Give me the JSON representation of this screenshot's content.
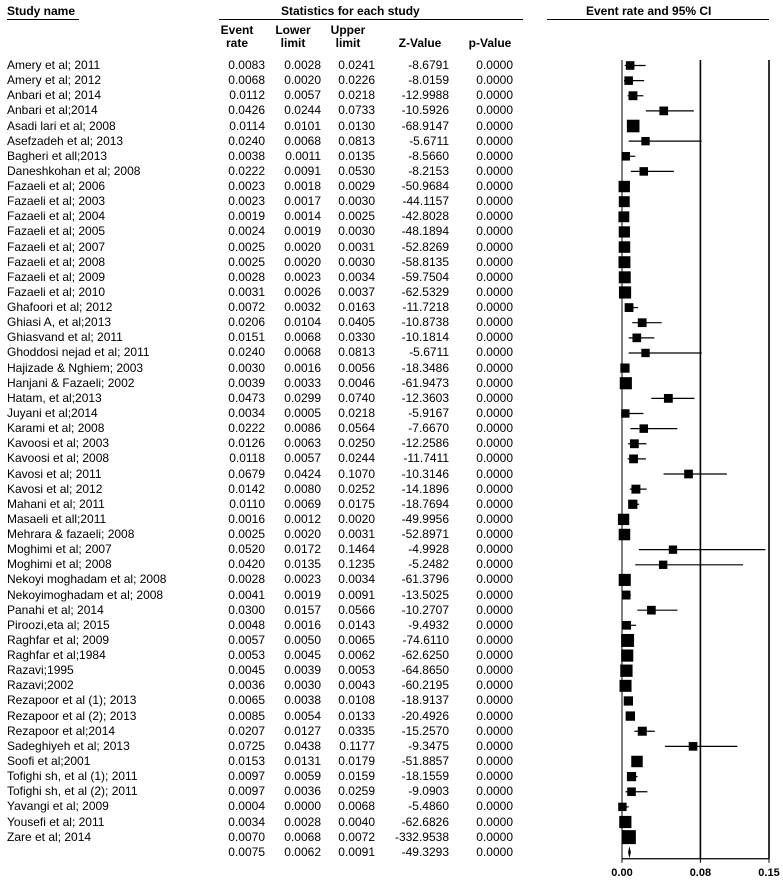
{
  "headers": {
    "study_name": "Study name",
    "statistics": "Statistics for each study",
    "event_rate_ci": "Event rate and 95% CI",
    "col_event_rate": [
      "Event",
      "rate"
    ],
    "col_lower": [
      "Lower",
      "limit"
    ],
    "col_upper": [
      "Upper",
      "limit"
    ],
    "col_z": "Z-Value",
    "col_p": "p-Value"
  },
  "chart_data": {
    "type": "forest",
    "x_ticks": [
      "0.00",
      "0.08",
      "0.15"
    ],
    "xlim": [
      0,
      0.15
    ],
    "studies": [
      {
        "name": "Amery  et al; 2011",
        "rate": "0.0083",
        "lower": "0.0028",
        "upper": "0.0241",
        "z": "-8.6791",
        "p": "0.0000"
      },
      {
        "name": "Amery  et al; 2012",
        "rate": "0.0068",
        "lower": "0.0020",
        "upper": "0.0226",
        "z": "-8.0159",
        "p": "0.0000"
      },
      {
        "name": "Anbari et al; 2014",
        "rate": "0.0112",
        "lower": "0.0057",
        "upper": "0.0218",
        "z": "-12.9988",
        "p": "0.0000"
      },
      {
        "name": "Anbari et al;2014",
        "rate": "0.0426",
        "lower": "0.0244",
        "upper": "0.0733",
        "z": "-10.5926",
        "p": "0.0000"
      },
      {
        "name": "Asadi lari et al; 2008",
        "rate": "0.0114",
        "lower": "0.0101",
        "upper": "0.0130",
        "z": "-68.9147",
        "p": "0.0000"
      },
      {
        "name": "Asefzadeh  et al; 2013",
        "rate": "0.0240",
        "lower": "0.0068",
        "upper": "0.0813",
        "z": "-5.6711",
        "p": "0.0000"
      },
      {
        "name": "Bagheri et all;2013",
        "rate": "0.0038",
        "lower": "0.0011",
        "upper": "0.0135",
        "z": "-8.5660",
        "p": "0.0000"
      },
      {
        "name": "Daneshkohan  et al; 2008",
        "rate": "0.0222",
        "lower": "0.0091",
        "upper": "0.0530",
        "z": "-8.2153",
        "p": "0.0000"
      },
      {
        "name": "Fazaeli et al;  2006",
        "rate": "0.0023",
        "lower": "0.0018",
        "upper": "0.0029",
        "z": "-50.9684",
        "p": "0.0000"
      },
      {
        "name": "Fazaeli et al; 2003",
        "rate": "0.0023",
        "lower": "0.0017",
        "upper": "0.0030",
        "z": "-44.1157",
        "p": "0.0000"
      },
      {
        "name": "Fazaeli et al; 2004",
        "rate": "0.0019",
        "lower": "0.0014",
        "upper": "0.0025",
        "z": "-42.8028",
        "p": "0.0000"
      },
      {
        "name": "Fazaeli et al; 2005",
        "rate": "0.0024",
        "lower": "0.0019",
        "upper": "0.0030",
        "z": "-48.1894",
        "p": "0.0000"
      },
      {
        "name": "Fazaeli et al; 2007",
        "rate": "0.0025",
        "lower": "0.0020",
        "upper": "0.0031",
        "z": "-52.8269",
        "p": "0.0000"
      },
      {
        "name": "Fazaeli et al; 2008",
        "rate": "0.0025",
        "lower": "0.0020",
        "upper": "0.0030",
        "z": "-58.8135",
        "p": "0.0000"
      },
      {
        "name": "Fazaeli et al; 2009",
        "rate": "0.0028",
        "lower": "0.0023",
        "upper": "0.0034",
        "z": "-59.7504",
        "p": "0.0000"
      },
      {
        "name": "Fazaeli et al; 2010",
        "rate": "0.0031",
        "lower": "0.0026",
        "upper": "0.0037",
        "z": "-62.5329",
        "p": "0.0000"
      },
      {
        "name": "Ghafoori  et al; 2012",
        "rate": "0.0072",
        "lower": "0.0032",
        "upper": "0.0163",
        "z": "-11.7218",
        "p": "0.0000"
      },
      {
        "name": "Ghiasi A, et al;2013",
        "rate": "0.0206",
        "lower": "0.0104",
        "upper": "0.0405",
        "z": "-10.8738",
        "p": "0.0000"
      },
      {
        "name": "Ghiasvand  et al; 2011",
        "rate": "0.0151",
        "lower": "0.0068",
        "upper": "0.0330",
        "z": "-10.1814",
        "p": "0.0000"
      },
      {
        "name": "Ghoddosi nejad  et al; 2011",
        "rate": "0.0240",
        "lower": "0.0068",
        "upper": "0.0813",
        "z": "-5.6711",
        "p": "0.0000"
      },
      {
        "name": "Hajizade & Nghiem; 2003",
        "rate": "0.0030",
        "lower": "0.0016",
        "upper": "0.0056",
        "z": "-18.3486",
        "p": "0.0000"
      },
      {
        "name": "Hanjani & Fazaeli; 2002",
        "rate": "0.0039",
        "lower": "0.0033",
        "upper": "0.0046",
        "z": "-61.9473",
        "p": "0.0000"
      },
      {
        "name": "Hatam, et al;2013",
        "rate": "0.0473",
        "lower": "0.0299",
        "upper": "0.0740",
        "z": "-12.3603",
        "p": "0.0000"
      },
      {
        "name": "Juyani  et al;2014",
        "rate": "0.0034",
        "lower": "0.0005",
        "upper": "0.0218",
        "z": "-5.9167",
        "p": "0.0000"
      },
      {
        "name": "Karami   et al; 2008",
        "rate": "0.0222",
        "lower": "0.0086",
        "upper": "0.0564",
        "z": "-7.6670",
        "p": "0.0000"
      },
      {
        "name": "Kavoosi  et al; 2003",
        "rate": "0.0126",
        "lower": "0.0063",
        "upper": "0.0250",
        "z": "-12.2586",
        "p": "0.0000"
      },
      {
        "name": "Kavoosi  et al; 2008",
        "rate": "0.0118",
        "lower": "0.0057",
        "upper": "0.0244",
        "z": "-11.7411",
        "p": "0.0000"
      },
      {
        "name": "Kavosi  et al; 2011",
        "rate": "0.0679",
        "lower": "0.0424",
        "upper": "0.1070",
        "z": "-10.3146",
        "p": "0.0000"
      },
      {
        "name": "Kavosi  et al; 2012",
        "rate": "0.0142",
        "lower": "0.0080",
        "upper": "0.0252",
        "z": "-14.1896",
        "p": "0.0000"
      },
      {
        "name": "Mahani et al; 2011",
        "rate": "0.0110",
        "lower": "0.0069",
        "upper": "0.0175",
        "z": "-18.7694",
        "p": "0.0000"
      },
      {
        "name": "Masaeli et all;2011",
        "rate": "0.0016",
        "lower": "0.0012",
        "upper": "0.0020",
        "z": "-49.9956",
        "p": "0.0000"
      },
      {
        "name": "Mehrara & fazaeli; 2008",
        "rate": "0.0025",
        "lower": "0.0020",
        "upper": "0.0031",
        "z": "-52.8971",
        "p": "0.0000"
      },
      {
        "name": "Moghimi  et al; 2007",
        "rate": "0.0520",
        "lower": "0.0172",
        "upper": "0.1464",
        "z": "-4.9928",
        "p": "0.0000"
      },
      {
        "name": "Moghimi  et al; 2008",
        "rate": "0.0420",
        "lower": "0.0135",
        "upper": "0.1235",
        "z": "-5.2482",
        "p": "0.0000"
      },
      {
        "name": "Nekoyi moghadam  et al; 2008",
        "rate": "0.0028",
        "lower": "0.0023",
        "upper": "0.0034",
        "z": "-61.3796",
        "p": "0.0000"
      },
      {
        "name": "Nekoyimoghadam et al; 2008",
        "rate": "0.0041",
        "lower": "0.0019",
        "upper": "0.0091",
        "z": "-13.5025",
        "p": "0.0000"
      },
      {
        "name": "Panahi  et al; 2014",
        "rate": "0.0300",
        "lower": "0.0157",
        "upper": "0.0566",
        "z": "-10.2707",
        "p": "0.0000"
      },
      {
        "name": "Piroozi,eta al; 2015",
        "rate": "0.0048",
        "lower": "0.0016",
        "upper": "0.0143",
        "z": "-9.4932",
        "p": "0.0000"
      },
      {
        "name": "Raghfar et al; 2009",
        "rate": "0.0057",
        "lower": "0.0050",
        "upper": "0.0065",
        "z": "-74.6110",
        "p": "0.0000"
      },
      {
        "name": "Raghfar et al;1984",
        "rate": "0.0053",
        "lower": "0.0045",
        "upper": "0.0062",
        "z": "-62.6250",
        "p": "0.0000"
      },
      {
        "name": "Razavi;1995",
        "rate": "0.0045",
        "lower": "0.0039",
        "upper": "0.0053",
        "z": "-64.8650",
        "p": "0.0000"
      },
      {
        "name": "Razavi;2002",
        "rate": "0.0036",
        "lower": "0.0030",
        "upper": "0.0043",
        "z": "-60.2195",
        "p": "0.0000"
      },
      {
        "name": "Rezapoor  et al (1); 2013",
        "rate": "0.0065",
        "lower": "0.0038",
        "upper": "0.0108",
        "z": "-18.9137",
        "p": "0.0000"
      },
      {
        "name": "Rezapoor  et al (2); 2013",
        "rate": "0.0085",
        "lower": "0.0054",
        "upper": "0.0133",
        "z": "-20.4926",
        "p": "0.0000"
      },
      {
        "name": "Rezapoor  et al;2014",
        "rate": "0.0207",
        "lower": "0.0127",
        "upper": "0.0335",
        "z": "-15.2570",
        "p": "0.0000"
      },
      {
        "name": "Sadeghiyeh  et al; 2013",
        "rate": "0.0725",
        "lower": "0.0438",
        "upper": "0.1177",
        "z": "-9.3475",
        "p": "0.0000"
      },
      {
        "name": "Soofi  et al;2001",
        "rate": "0.0153",
        "lower": "0.0131",
        "upper": "0.0179",
        "z": "-51.8857",
        "p": "0.0000"
      },
      {
        "name": "Tofighi sh, et al (1); 2011",
        "rate": "0.0097",
        "lower": "0.0059",
        "upper": "0.0159",
        "z": "-18.1559",
        "p": "0.0000"
      },
      {
        "name": "Tofighi sh, et al (2); 2011",
        "rate": "0.0097",
        "lower": "0.0036",
        "upper": "0.0259",
        "z": "-9.0903",
        "p": "0.0000"
      },
      {
        "name": "Yavangi  et al; 2009",
        "rate": "0.0004",
        "lower": "0.0000",
        "upper": "0.0068",
        "z": "-5.4860",
        "p": "0.0000"
      },
      {
        "name": "Yousefi et al; 2011",
        "rate": "0.0034",
        "lower": "0.0028",
        "upper": "0.0040",
        "z": "-62.6826",
        "p": "0.0000"
      },
      {
        "name": "Zare et al; 2014",
        "rate": "0.0070",
        "lower": "0.0068",
        "upper": "0.0072",
        "z": "-332.9538",
        "p": "0.0000"
      }
    ],
    "pooled": {
      "rate": "0.0075",
      "lower": "0.0062",
      "upper": "0.0091",
      "z": "-49.3293",
      "p": "0.0000"
    },
    "reference_lines": [
      0.0,
      0.08,
      0.15
    ]
  }
}
